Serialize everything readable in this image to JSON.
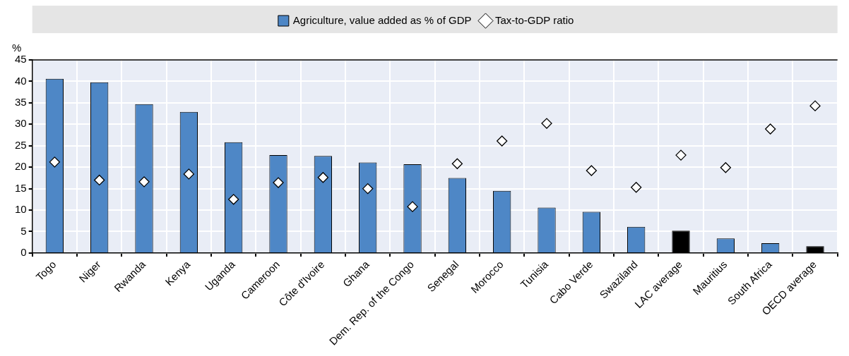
{
  "chart_data": {
    "type": "bar",
    "ylabel": "%",
    "categories": [
      "Togo",
      "Niger",
      "Rwanda",
      "Kenya",
      "Uganda",
      "Cameroon",
      "Côte d'Ivoire",
      "Ghana",
      "Dem. Rep. of the Congo",
      "Senegal",
      "Morocco",
      "Tunisia",
      "Cabo Verde",
      "Swaziland",
      "LAC average",
      "Mauritius",
      "South Africa",
      "OECD average"
    ],
    "series": [
      {
        "name": "Agriculture, value added as % of GDP",
        "color": "#4e87c6",
        "colors": [
          "#4e87c6",
          "#4e87c6",
          "#4e87c6",
          "#4e87c6",
          "#4e87c6",
          "#4e87c6",
          "#4e87c6",
          "#4e87c6",
          "#4e87c6",
          "#4e87c6",
          "#4e87c6",
          "#4e87c6",
          "#4e87c6",
          "#4e87c6",
          "#000000",
          "#4e87c6",
          "#4e87c6",
          "#000000"
        ],
        "values": [
          40.6,
          39.8,
          34.7,
          32.9,
          25.8,
          22.8,
          22.6,
          21.1,
          20.7,
          17.5,
          14.5,
          10.6,
          9.6,
          6.1,
          5.2,
          3.4,
          2.3,
          1.6
        ]
      },
      {
        "name": "Tax-to-GDP ratio",
        "type": "scatter",
        "marker": "diamond",
        "color": "#ffffff",
        "values": [
          21.2,
          17.0,
          16.6,
          18.4,
          12.5,
          16.4,
          17.6,
          15.0,
          10.8,
          20.8,
          26.1,
          30.2,
          19.2,
          15.3,
          22.8,
          19.9,
          28.9,
          34.3
        ]
      }
    ],
    "ylim": [
      0,
      45
    ],
    "yticks": [
      0,
      5,
      10,
      15,
      20,
      25,
      30,
      35,
      40,
      45
    ],
    "grid": true,
    "legend": "top"
  }
}
